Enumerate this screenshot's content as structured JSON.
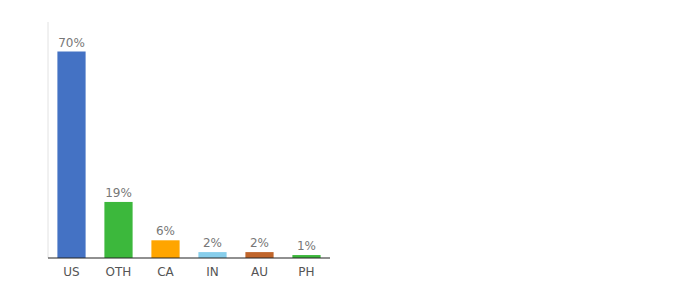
{
  "chart_data": {
    "type": "bar",
    "categories": [
      "US",
      "OTH",
      "CA",
      "IN",
      "AU",
      "PH"
    ],
    "values": [
      70,
      19,
      6,
      2,
      2,
      1
    ],
    "value_labels": [
      "70%",
      "19%",
      "6%",
      "2%",
      "2%",
      "1%"
    ],
    "colors": [
      "#4472c4",
      "#3cb83c",
      "#ffa500",
      "#87ceeb",
      "#c0652b",
      "#3cb83c"
    ],
    "ylim": [
      0,
      80
    ],
    "data_labels": true,
    "tick_labels": "x"
  }
}
